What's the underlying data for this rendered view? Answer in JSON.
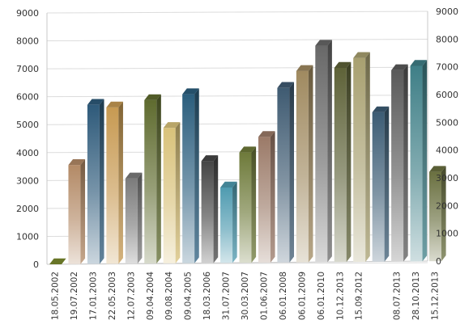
{
  "colors": {
    "gridline": "#dcdcdc",
    "axis": "#c8c8c8",
    "tick_text": "#333333",
    "palette": [
      "#7a8a2e",
      "#b38a66",
      "#2e5a7a",
      "#c79a52",
      "#7b7b7b",
      "#5f6b2f",
      "#d9c27a",
      "#2b5e7d",
      "#454545",
      "#4f9bb0",
      "#6e7a3a",
      "#9b7a68",
      "#3f5b72",
      "#a08a60",
      "#686868",
      "#5e6238",
      "#a8a070",
      "#3c5c74",
      "#5a5a5a",
      "#3f7f87",
      "#6a7040"
    ]
  },
  "chart_data": {
    "type": "bar",
    "style": "3d-cylinder-columns",
    "grid": true,
    "legend": "none",
    "ylim": [
      0,
      9000
    ],
    "yticks": [
      "0",
      "1000",
      "2000",
      "3000",
      "4000",
      "5000",
      "6000",
      "7000",
      "8000",
      "9000"
    ],
    "yticks_right": [
      "0",
      "1000",
      "2000",
      "3000",
      "4000",
      "5000",
      "6000",
      "7000",
      "8000",
      "9000"
    ],
    "categories": [
      "18.05.2002",
      "19.07.2002",
      "17.01.2003",
      "22.05.2003",
      "12.07.2003",
      "09.04.2004",
      "09.08.2004",
      "09.04.2005",
      "18.03.2006",
      "31.07.2007",
      "30.03.2007",
      "01.06.2007",
      "06.01.2008",
      "06.01.2009",
      "06.01.2010",
      "10.12.2013",
      "15.09.2012",
      "",
      "08.07.2013",
      "28.10.2013",
      "15.12.2013"
    ],
    "values": [
      0,
      3550,
      5700,
      5600,
      3050,
      5850,
      4850,
      6050,
      3650,
      2700,
      3950,
      4500,
      6250,
      6850,
      7750,
      6950,
      7300,
      5350,
      6850,
      7000,
      3200
    ]
  }
}
